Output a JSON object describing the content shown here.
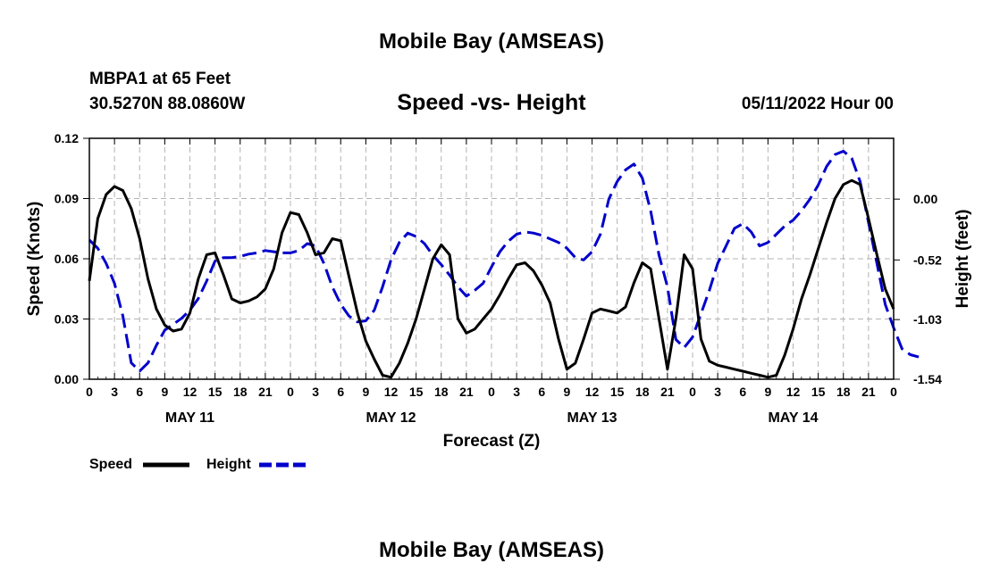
{
  "page": {
    "header_title": "Mobile Bay (AMSEAS)",
    "footer_title": "Mobile Bay (AMSEAS)",
    "station_line": "MBPA1 at 65 Feet",
    "coords_line": "30.5270N  88.0860W",
    "date_line": "05/11/2022 Hour 00"
  },
  "chart_data": {
    "type": "line",
    "title": "Speed -vs- Height",
    "xlabel": "Forecast (Z)",
    "ylabel": "Speed (Knots)",
    "y2label": "Height (feet)",
    "x_range_hours": [
      0,
      96
    ],
    "ylim": [
      0,
      0.12
    ],
    "y2lim": [
      -1.54,
      0.52
    ],
    "yticks": [
      "0.00",
      "0.03",
      "0.06",
      "0.09",
      "0.12"
    ],
    "y2ticks": [
      "-1.54",
      "-1.03",
      "-0.52",
      "0.00"
    ],
    "xticks": [
      "0",
      "3",
      "6",
      "9",
      "12",
      "15",
      "18",
      "21",
      "0",
      "3",
      "6",
      "9",
      "12",
      "15",
      "18",
      "21",
      "0",
      "3",
      "6",
      "9",
      "12",
      "15",
      "18",
      "21",
      "0",
      "3",
      "6",
      "9",
      "12",
      "15",
      "18",
      "21",
      "0"
    ],
    "day_labels": [
      "MAY 11",
      "MAY 12",
      "MAY 13",
      "MAY 14"
    ],
    "legend": {
      "speed": "Speed",
      "height": "Height"
    },
    "colors": {
      "speed": "#000000",
      "height": "#0000cc"
    },
    "grid": true,
    "series": [
      {
        "name": "Speed",
        "points": [
          [
            0,
            0.049
          ],
          [
            1,
            0.08
          ],
          [
            2,
            0.092
          ],
          [
            3,
            0.096
          ],
          [
            4,
            0.094
          ],
          [
            5,
            0.085
          ],
          [
            6,
            0.07
          ],
          [
            7,
            0.05
          ],
          [
            8,
            0.035
          ],
          [
            9,
            0.027
          ],
          [
            10,
            0.024
          ],
          [
            11,
            0.025
          ],
          [
            12,
            0.033
          ],
          [
            13,
            0.05
          ],
          [
            14,
            0.062
          ],
          [
            15,
            0.063
          ],
          [
            16,
            0.052
          ],
          [
            17,
            0.04
          ],
          [
            18,
            0.038
          ],
          [
            19,
            0.039
          ],
          [
            20,
            0.041
          ],
          [
            21,
            0.045
          ],
          [
            22,
            0.055
          ],
          [
            23,
            0.073
          ],
          [
            24,
            0.083
          ],
          [
            25,
            0.082
          ],
          [
            26,
            0.073
          ],
          [
            27,
            0.062
          ],
          [
            28,
            0.063
          ],
          [
            29,
            0.07
          ],
          [
            30,
            0.069
          ],
          [
            31,
            0.051
          ],
          [
            32,
            0.033
          ],
          [
            33,
            0.019
          ],
          [
            34,
            0.01
          ],
          [
            35,
            0.002
          ],
          [
            36,
            0.001
          ],
          [
            37,
            0.008
          ],
          [
            38,
            0.018
          ],
          [
            39,
            0.03
          ],
          [
            40,
            0.045
          ],
          [
            41,
            0.06
          ],
          [
            42,
            0.067
          ],
          [
            43,
            0.062
          ],
          [
            44,
            0.03
          ],
          [
            45,
            0.023
          ],
          [
            46,
            0.025
          ],
          [
            47,
            0.03
          ],
          [
            48,
            0.035
          ],
          [
            49,
            0.042
          ],
          [
            50,
            0.05
          ],
          [
            51,
            0.057
          ],
          [
            52,
            0.058
          ],
          [
            53,
            0.054
          ],
          [
            54,
            0.047
          ],
          [
            55,
            0.038
          ],
          [
            56,
            0.02
          ],
          [
            57,
            0.005
          ],
          [
            58,
            0.008
          ],
          [
            59,
            0.02
          ],
          [
            60,
            0.033
          ],
          [
            61,
            0.035
          ],
          [
            62,
            0.034
          ],
          [
            63,
            0.033
          ],
          [
            64,
            0.036
          ],
          [
            65,
            0.048
          ],
          [
            66,
            0.058
          ],
          [
            67,
            0.055
          ],
          [
            68,
            0.03
          ],
          [
            69,
            0.005
          ],
          [
            70,
            0.03
          ],
          [
            71,
            0.062
          ],
          [
            72,
            0.055
          ],
          [
            73,
            0.02
          ],
          [
            74,
            0.009
          ],
          [
            75,
            0.007
          ],
          [
            76,
            0.006
          ],
          [
            77,
            0.005
          ],
          [
            78,
            0.004
          ],
          [
            79,
            0.003
          ],
          [
            80,
            0.002
          ],
          [
            81,
            0.001
          ],
          [
            82,
            0.002
          ],
          [
            83,
            0.012
          ],
          [
            84,
            0.025
          ],
          [
            85,
            0.04
          ],
          [
            86,
            0.052
          ],
          [
            87,
            0.065
          ],
          [
            88,
            0.078
          ],
          [
            89,
            0.09
          ],
          [
            90,
            0.097
          ],
          [
            91,
            0.099
          ],
          [
            92,
            0.097
          ],
          [
            93,
            0.08
          ],
          [
            94,
            0.062
          ],
          [
            95,
            0.045
          ],
          [
            96,
            0.035
          ]
        ]
      },
      {
        "name": "Height",
        "points": [
          [
            0,
            -0.35
          ],
          [
            1,
            -0.42
          ],
          [
            2,
            -0.55
          ],
          [
            3,
            -0.72
          ],
          [
            4,
            -1.0
          ],
          [
            5,
            -1.4
          ],
          [
            6,
            -1.47
          ],
          [
            7,
            -1.4
          ],
          [
            8,
            -1.25
          ],
          [
            9,
            -1.12
          ],
          [
            10,
            -1.07
          ],
          [
            11,
            -1.02
          ],
          [
            12,
            -0.95
          ],
          [
            13,
            -0.85
          ],
          [
            14,
            -0.7
          ],
          [
            15,
            -0.53
          ],
          [
            16,
            -0.5
          ],
          [
            17,
            -0.5
          ],
          [
            18,
            -0.49
          ],
          [
            19,
            -0.47
          ],
          [
            20,
            -0.46
          ],
          [
            21,
            -0.44
          ],
          [
            22,
            -0.45
          ],
          [
            23,
            -0.46
          ],
          [
            24,
            -0.46
          ],
          [
            25,
            -0.44
          ],
          [
            26,
            -0.38
          ],
          [
            27,
            -0.4
          ],
          [
            28,
            -0.55
          ],
          [
            29,
            -0.75
          ],
          [
            30,
            -0.9
          ],
          [
            31,
            -1.0
          ],
          [
            32,
            -1.05
          ],
          [
            33,
            -1.04
          ],
          [
            34,
            -0.95
          ],
          [
            35,
            -0.75
          ],
          [
            36,
            -0.52
          ],
          [
            37,
            -0.37
          ],
          [
            38,
            -0.29
          ],
          [
            39,
            -0.32
          ],
          [
            40,
            -0.38
          ],
          [
            41,
            -0.48
          ],
          [
            42,
            -0.56
          ],
          [
            43,
            -0.65
          ],
          [
            44,
            -0.75
          ],
          [
            45,
            -0.83
          ],
          [
            46,
            -0.78
          ],
          [
            47,
            -0.72
          ],
          [
            48,
            -0.58
          ],
          [
            49,
            -0.45
          ],
          [
            50,
            -0.36
          ],
          [
            51,
            -0.3
          ],
          [
            52,
            -0.28
          ],
          [
            53,
            -0.29
          ],
          [
            54,
            -0.31
          ],
          [
            55,
            -0.34
          ],
          [
            56,
            -0.37
          ],
          [
            57,
            -0.42
          ],
          [
            58,
            -0.5
          ],
          [
            59,
            -0.52
          ],
          [
            60,
            -0.45
          ],
          [
            61,
            -0.3
          ],
          [
            62,
            0.0
          ],
          [
            63,
            0.15
          ],
          [
            64,
            0.25
          ],
          [
            65,
            0.3
          ],
          [
            66,
            0.18
          ],
          [
            67,
            -0.1
          ],
          [
            68,
            -0.48
          ],
          [
            69,
            -0.75
          ],
          [
            70,
            -1.2
          ],
          [
            71,
            -1.27
          ],
          [
            72,
            -1.18
          ],
          [
            73,
            -0.98
          ],
          [
            74,
            -0.78
          ],
          [
            75,
            -0.55
          ],
          [
            76,
            -0.4
          ],
          [
            77,
            -0.25
          ],
          [
            78,
            -0.21
          ],
          [
            79,
            -0.28
          ],
          [
            80,
            -0.4
          ],
          [
            81,
            -0.37
          ],
          [
            82,
            -0.3
          ],
          [
            83,
            -0.23
          ],
          [
            84,
            -0.18
          ],
          [
            85,
            -0.1
          ],
          [
            86,
            0.0
          ],
          [
            87,
            0.12
          ],
          [
            88,
            0.28
          ],
          [
            89,
            0.38
          ],
          [
            90,
            0.41
          ],
          [
            91,
            0.35
          ],
          [
            92,
            0.15
          ],
          [
            93,
            -0.2
          ],
          [
            94,
            -0.55
          ],
          [
            95,
            -0.9
          ],
          [
            96,
            -1.1
          ],
          [
            97,
            -1.28
          ],
          [
            98,
            -1.33
          ],
          [
            99,
            -1.35
          ]
        ]
      }
    ]
  }
}
